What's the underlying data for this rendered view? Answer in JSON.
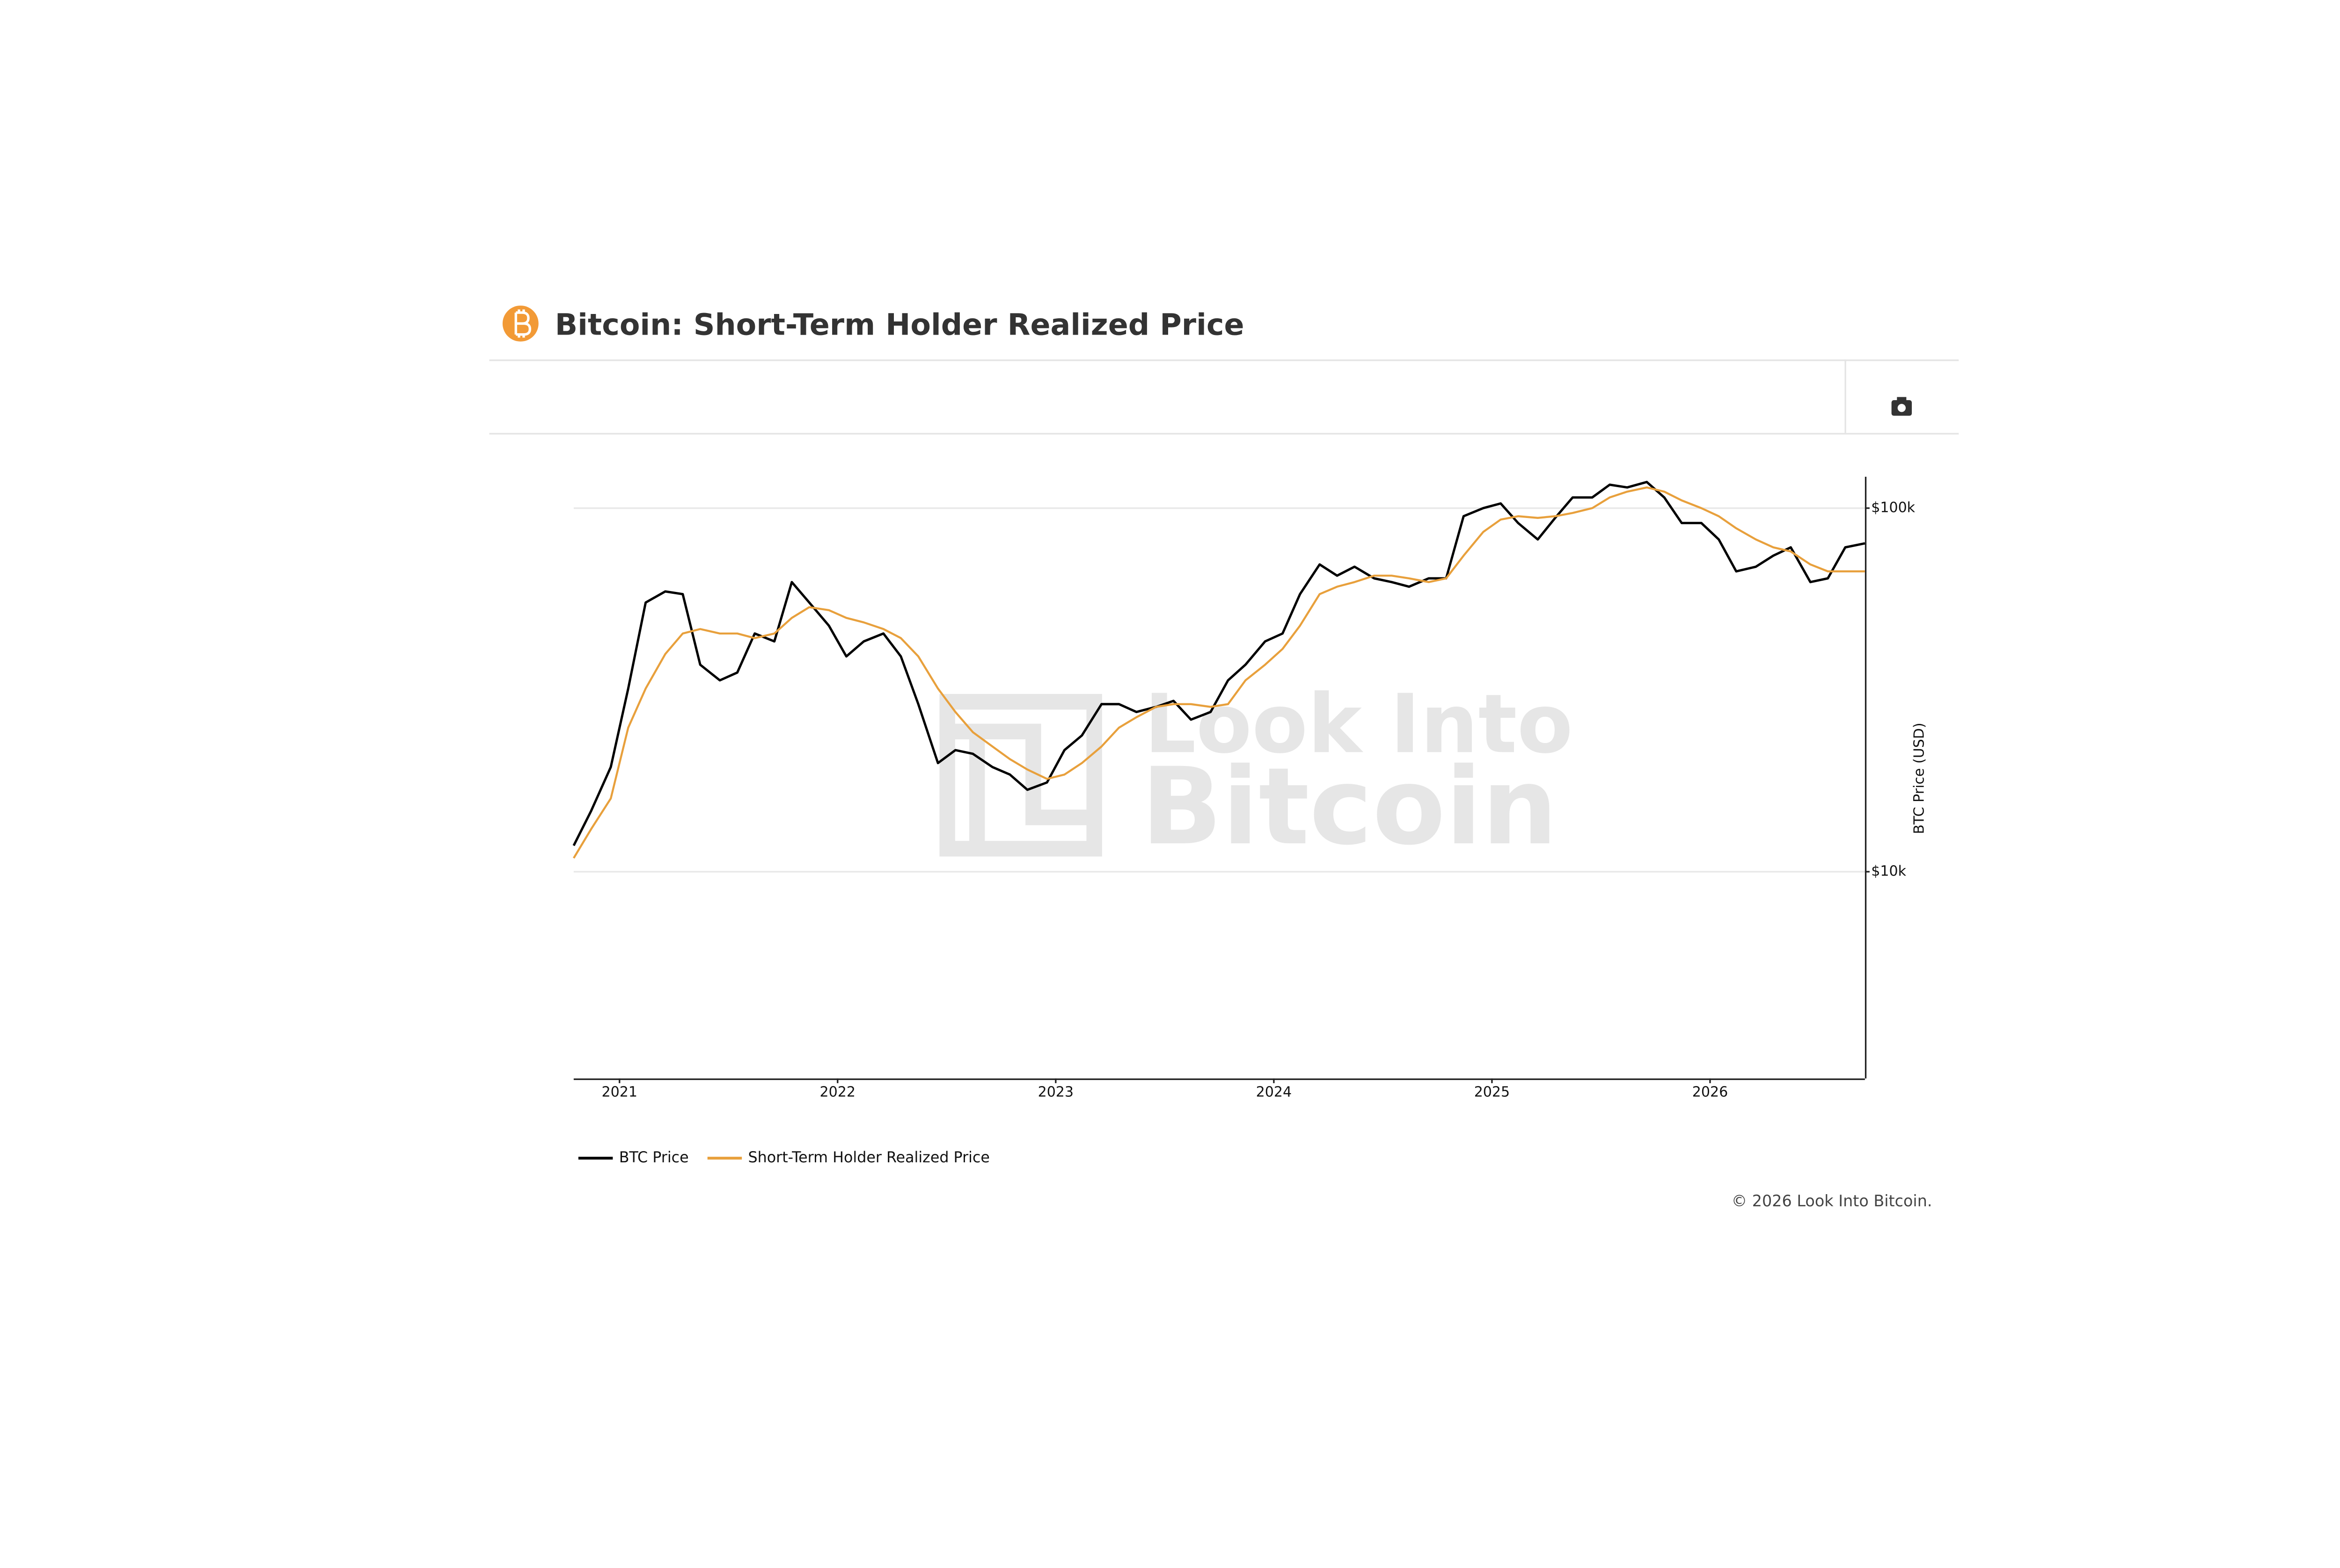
{
  "chart_data": {
    "type": "line",
    "title": "Bitcoin: Short-Term Holder Realized Price",
    "y_label": "BTC Price (USD)",
    "watermark": [
      "Look Into",
      "Bitcoin"
    ],
    "copyright": "© 2026 Look Into Bitcoin.",
    "log_scale": true,
    "grid": true,
    "legend": "bottom-left",
    "xlim": [
      2020.79,
      2026.71
    ],
    "xticks": [
      2021,
      2022,
      2023,
      2024,
      2025,
      2026
    ],
    "ylim": [
      2700,
      122000
    ],
    "yticks": [
      {
        "value": 10000,
        "label": "$10k"
      },
      {
        "value": 100000,
        "label": "$100k"
      }
    ],
    "x": [
      2020.79,
      2020.87,
      2020.96,
      2021.04,
      2021.12,
      2021.21,
      2021.29,
      2021.37,
      2021.46,
      2021.54,
      2021.62,
      2021.71,
      2021.79,
      2021.87,
      2021.96,
      2022.04,
      2022.12,
      2022.21,
      2022.29,
      2022.37,
      2022.46,
      2022.54,
      2022.62,
      2022.71,
      2022.79,
      2022.87,
      2022.96,
      2023.04,
      2023.12,
      2023.21,
      2023.29,
      2023.37,
      2023.46,
      2023.54,
      2023.62,
      2023.71,
      2023.79,
      2023.87,
      2023.96,
      2024.04,
      2024.12,
      2024.21,
      2024.29,
      2024.37,
      2024.46,
      2024.54,
      2024.62,
      2024.71,
      2024.79,
      2024.87,
      2024.96,
      2025.04,
      2025.12,
      2025.21,
      2025.29,
      2025.37,
      2025.46,
      2025.54,
      2025.62,
      2025.71,
      2025.79,
      2025.87,
      2025.96,
      2026.04,
      2026.12,
      2026.21,
      2026.29,
      2026.37,
      2026.46,
      2026.54,
      2026.62,
      2026.71
    ],
    "series": [
      {
        "name": "BTC Price",
        "color": "#000000",
        "values": [
          11800,
          14700,
          19400,
          31900,
          55000,
          59000,
          58000,
          37100,
          33600,
          35300,
          45200,
          43000,
          62600,
          55000,
          47500,
          39100,
          43000,
          45200,
          39100,
          28900,
          19900,
          21600,
          21100,
          19400,
          18500,
          16800,
          17600,
          21600,
          23700,
          28900,
          28900,
          27500,
          28400,
          29500,
          26200,
          27500,
          33600,
          37100,
          43000,
          45200,
          58000,
          70000,
          65200,
          69000,
          64100,
          62600,
          60800,
          64100,
          64100,
          95000,
          100000,
          103000,
          91000,
          82000,
          94000,
          107000,
          107000,
          116000,
          114000,
          118000,
          107000,
          91000,
          91000,
          82000,
          67000,
          69000,
          74000,
          78000,
          62600,
          64100,
          78000,
          80000
        ]
      },
      {
        "name": "Short-Term Holder Realized Price",
        "color": "#e8a03c",
        "values": [
          10900,
          13100,
          15900,
          24900,
          31900,
          39700,
          45200,
          46500,
          45200,
          45200,
          43900,
          45200,
          49900,
          53400,
          52400,
          49900,
          48500,
          46500,
          43900,
          39100,
          31900,
          27500,
          24200,
          22100,
          20400,
          19100,
          18000,
          18500,
          19900,
          22100,
          24900,
          26600,
          28400,
          28900,
          28900,
          28400,
          28900,
          33600,
          37100,
          41000,
          47500,
          58000,
          60800,
          62600,
          65200,
          65200,
          64100,
          62600,
          64100,
          74000,
          86000,
          93000,
          95000,
          94000,
          95000,
          97000,
          100000,
          107000,
          111000,
          114000,
          111000,
          105000,
          100000,
          95000,
          88000,
          82000,
          78000,
          76000,
          70000,
          67000,
          67000,
          67000
        ]
      }
    ]
  }
}
